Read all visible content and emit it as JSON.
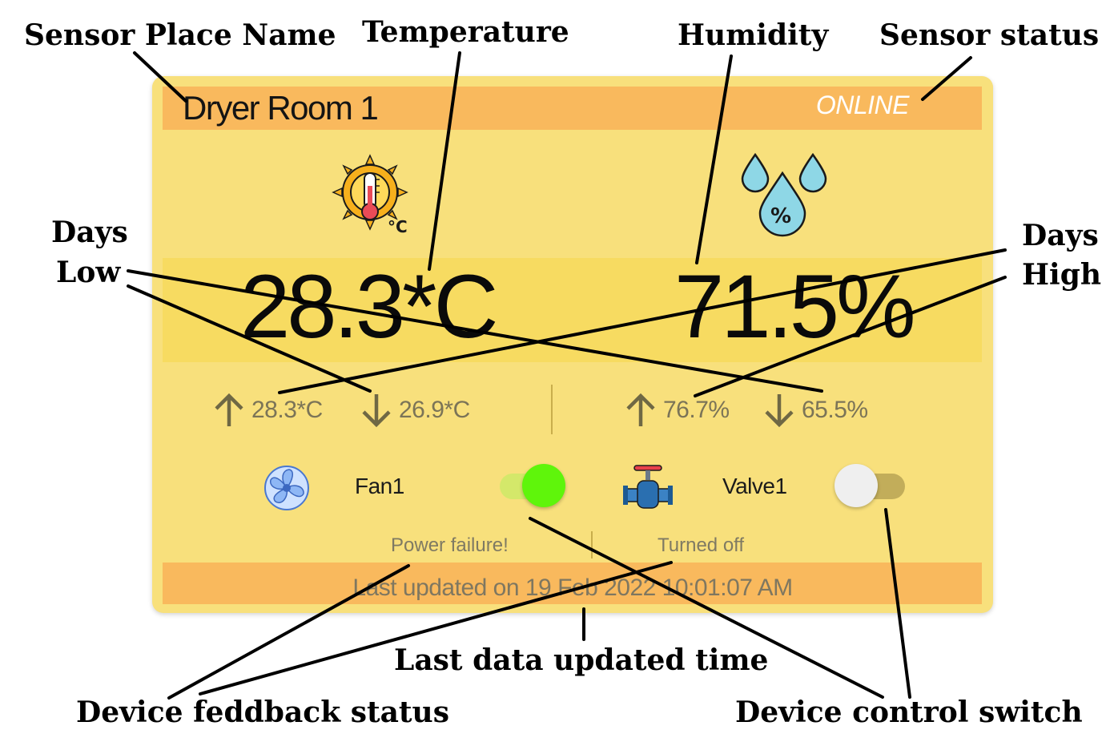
{
  "card": {
    "title": "Dryer Room 1",
    "status": "ONLINE",
    "temperature": {
      "icon": "sun-thermometer-icon",
      "value": "28.3*C",
      "high": "28.3*C",
      "low": "26.9*C"
    },
    "humidity": {
      "icon": "humidity-drops-icon",
      "value": "71.5%",
      "high": "76.7%",
      "low": "65.5%"
    },
    "devices": [
      {
        "name": "Fan1",
        "icon": "fan-icon",
        "switch_on": true,
        "feedback": "Power failure!"
      },
      {
        "name": "Valve1",
        "icon": "valve-icon",
        "switch_on": false,
        "feedback": "Turned off"
      }
    ],
    "last_updated": "Last updated on 19 Feb 2022 10:01:07 AM"
  },
  "colors": {
    "card_bg": "#f8e07c",
    "band": "#f9b95d",
    "reading_band": "#f7db61",
    "switch_on_knob": "#5ff50b",
    "switch_off_knob": "#efefef"
  },
  "annotations": {
    "sensor_place_name": "Sensor Place Name",
    "temperature": "Temperature",
    "humidity": "Humidity",
    "sensor_status": "Sensor status",
    "days_low_line1": "Days",
    "days_low_line2": "Low",
    "days_high_line1": "Days",
    "days_high_line2": "High",
    "last_data_updated_time": "Last data updated time",
    "device_feedback_status": "Device feddback status",
    "device_control_switch": "Device control switch"
  }
}
